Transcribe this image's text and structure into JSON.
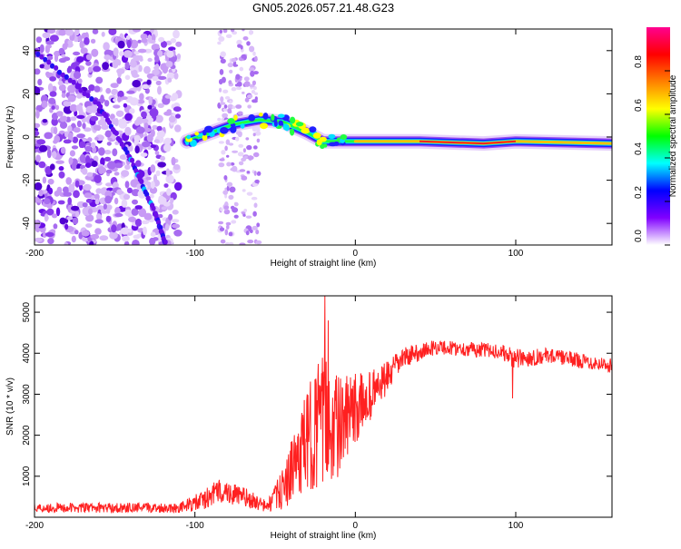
{
  "title": "GN05.2026.057.21.48.G23",
  "chart_data": [
    {
      "type": "heatmap",
      "xlabel": "Height of straight line (km)",
      "ylabel": "Frequency (Hz)",
      "xlim": [
        -200,
        160
      ],
      "ylim": [
        -50,
        50
      ],
      "xticks": [
        -200,
        -100,
        0,
        100
      ],
      "yticks": [
        -40,
        -20,
        0,
        20,
        40
      ],
      "colorbar": {
        "label": "Normalized spectral amplitude",
        "range": [
          0,
          1
        ],
        "ticks": [
          "0.0",
          "0.2",
          "0.4",
          "0.6",
          "0.8"
        ],
        "tick_values": [
          0,
          0.2,
          0.4,
          0.6,
          0.8
        ],
        "colors": [
          "#ffffff",
          "#8000ff",
          "#0000ff",
          "#00ffff",
          "#00ff00",
          "#ffff00",
          "#ff8000",
          "#ff0000",
          "#ff0090"
        ]
      },
      "features": {
        "scatter_region_x": [
          -200,
          -110
        ],
        "scatter_band_x": [
          -85,
          -60
        ],
        "direct_signal": [
          {
            "x": -105,
            "y": -2
          },
          {
            "x": -90,
            "y": 2
          },
          {
            "x": -75,
            "y": 6
          },
          {
            "x": -60,
            "y": 8
          },
          {
            "x": -45,
            "y": 7
          },
          {
            "x": -30,
            "y": 2
          },
          {
            "x": -20,
            "y": -2
          },
          {
            "x": 0,
            "y": -2
          },
          {
            "x": 40,
            "y": -2
          },
          {
            "x": 80,
            "y": -3
          },
          {
            "x": 100,
            "y": -2
          },
          {
            "x": 160,
            "y": -3
          }
        ],
        "diagonal_track": [
          {
            "x": -200,
            "y": 40
          },
          {
            "x": -160,
            "y": 15
          },
          {
            "x": -140,
            "y": -10
          },
          {
            "x": -125,
            "y": -35
          },
          {
            "x": -118,
            "y": -50
          }
        ]
      }
    },
    {
      "type": "line",
      "xlabel": "Height of straight line (km)",
      "ylabel": "SNR (10 * v/v)",
      "xlim": [
        -200,
        160
      ],
      "ylim": [
        0,
        5400
      ],
      "xticks": [
        -200,
        -100,
        0,
        100
      ],
      "yticks": [
        1000,
        2000,
        3000,
        4000,
        5000
      ],
      "color": "#ff2020",
      "profile": [
        {
          "x": -200,
          "mean": 230,
          "noise": 120
        },
        {
          "x": -110,
          "mean": 230,
          "noise": 120
        },
        {
          "x": -95,
          "mean": 400,
          "noise": 250
        },
        {
          "x": -85,
          "mean": 650,
          "noise": 300
        },
        {
          "x": -70,
          "mean": 500,
          "noise": 250
        },
        {
          "x": -55,
          "mean": 250,
          "noise": 150
        },
        {
          "x": -45,
          "mean": 700,
          "noise": 500
        },
        {
          "x": -35,
          "mean": 1500,
          "noise": 1000
        },
        {
          "x": -25,
          "mean": 2200,
          "noise": 1500
        },
        {
          "x": -18,
          "mean": 2400,
          "noise": 1700
        },
        {
          "x": -10,
          "mean": 2200,
          "noise": 1200
        },
        {
          "x": 0,
          "mean": 2600,
          "noise": 900
        },
        {
          "x": 10,
          "mean": 3000,
          "noise": 600
        },
        {
          "x": 20,
          "mean": 3400,
          "noise": 400
        },
        {
          "x": 30,
          "mean": 3900,
          "noise": 250
        },
        {
          "x": 50,
          "mean": 4150,
          "noise": 180
        },
        {
          "x": 90,
          "mean": 4050,
          "noise": 180
        },
        {
          "x": 100,
          "mean": 3850,
          "noise": 250
        },
        {
          "x": 120,
          "mean": 3950,
          "noise": 180
        },
        {
          "x": 160,
          "mean": 3700,
          "noise": 180
        }
      ],
      "peaks": [
        {
          "x": -19,
          "y": 5400
        },
        {
          "x": -17,
          "y": 4800
        },
        {
          "x": 98,
          "y": 2900
        }
      ]
    }
  ]
}
